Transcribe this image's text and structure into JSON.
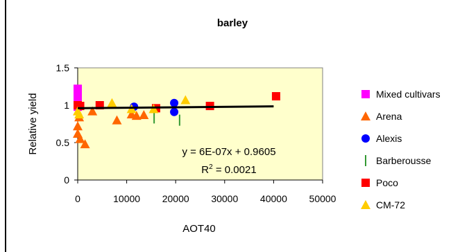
{
  "chart_data": {
    "type": "scatter",
    "title": "barley",
    "xlabel": "AOT40",
    "ylabel": "Relative yield",
    "xlim": [
      0,
      50000
    ],
    "ylim": [
      0,
      1.5
    ],
    "xticks": [
      0,
      10000,
      20000,
      30000,
      40000,
      50000
    ],
    "yticks": [
      0,
      0.5,
      1,
      1.5
    ],
    "xtick_labels": [
      "0",
      "10000",
      "20000",
      "30000",
      "40000",
      "50000"
    ],
    "ytick_labels": [
      "0",
      "0.5",
      "1",
      "1.5"
    ],
    "plot_background": "#FFFFCC",
    "grid": false,
    "legend_position": "right",
    "series": [
      {
        "name": "Mixed cultivars",
        "marker": "square",
        "color": "#FF00FF",
        "points": [
          [
            0,
            1.22
          ],
          [
            0,
            1.15
          ],
          [
            0,
            1.05
          ],
          [
            0,
            0.98
          ]
        ]
      },
      {
        "name": "Arena",
        "marker": "triangle",
        "color": "#FF6600",
        "points": [
          [
            0,
            0.72
          ],
          [
            0,
            0.62
          ],
          [
            300,
            0.84
          ],
          [
            500,
            0.55
          ],
          [
            1500,
            0.48
          ],
          [
            3000,
            0.92
          ],
          [
            8000,
            0.8
          ],
          [
            11000,
            0.88
          ],
          [
            12000,
            0.86
          ],
          [
            13500,
            0.87
          ]
        ]
      },
      {
        "name": "Alexis",
        "marker": "circle",
        "color": "#0000FF",
        "points": [
          [
            11500,
            0.98
          ],
          [
            19700,
            1.03
          ],
          [
            19700,
            0.91
          ]
        ]
      },
      {
        "name": "Barberousse",
        "marker": "bar",
        "color": "#339933",
        "points": [
          [
            15600,
            0.83
          ],
          [
            20800,
            0.8
          ]
        ]
      },
      {
        "name": "Poco",
        "marker": "square",
        "color": "#FF0000",
        "points": [
          [
            0,
            1.0
          ],
          [
            500,
            0.99
          ],
          [
            4500,
            1.0
          ],
          [
            16000,
            0.96
          ],
          [
            27000,
            0.99
          ],
          [
            40500,
            1.12
          ]
        ]
      },
      {
        "name": "CM-72",
        "marker": "triangle",
        "color": "#FFCC00",
        "points": [
          [
            0,
            0.92
          ],
          [
            300,
            0.88
          ],
          [
            7000,
            1.03
          ],
          [
            11000,
            0.95
          ],
          [
            15500,
            0.95
          ],
          [
            22000,
            1.07
          ]
        ]
      }
    ],
    "trendline": {
      "slope": 6e-07,
      "intercept": 0.9605,
      "color": "#000000"
    },
    "annotations": {
      "equation": "y = 6E-07x + 0.9605",
      "r2_prefix": "R",
      "r2_exponent": "2",
      "r2_value": " = 0.0021"
    }
  }
}
